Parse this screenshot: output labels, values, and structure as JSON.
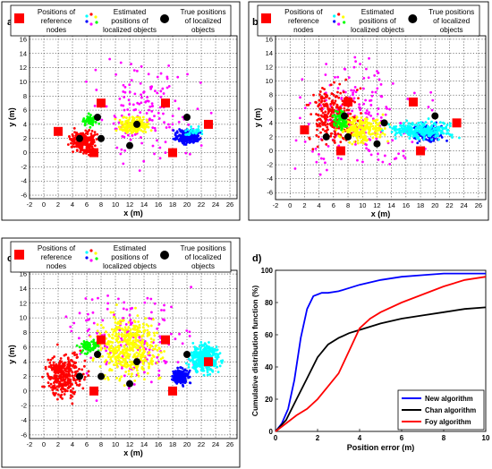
{
  "legend_text": {
    "ref": [
      "Positions of",
      "reference",
      "nodes"
    ],
    "est": [
      "Estimated",
      "positions of",
      "localized objects"
    ],
    "true": [
      "True positions",
      "of localized",
      "objects"
    ]
  },
  "chart_data": [
    {
      "type": "scatter",
      "panel_label": "a)",
      "xlabel": "x (m)",
      "ylabel": "y (m)",
      "xlim": [
        -2,
        27
      ],
      "ylim": [
        -6.5,
        16.5
      ],
      "xticks": [
        -2,
        0,
        2,
        4,
        6,
        8,
        10,
        12,
        14,
        16,
        18,
        20,
        22,
        24,
        26
      ],
      "yticks": [
        -6,
        -4,
        -2,
        0,
        2,
        4,
        6,
        8,
        10,
        12,
        14,
        16
      ],
      "grid": true,
      "legend": [
        "Positions of reference nodes",
        "Estimated positions of localized objects",
        "True positions of localized objects"
      ],
      "reference_nodes": [
        [
          2,
          3
        ],
        [
          7,
          0
        ],
        [
          8,
          7
        ],
        [
          17,
          7
        ],
        [
          18,
          0
        ],
        [
          23,
          4
        ]
      ],
      "true_positions": [
        [
          5,
          2
        ],
        [
          8,
          2
        ],
        [
          7.5,
          5
        ],
        [
          12,
          1
        ],
        [
          13,
          4
        ],
        [
          20,
          5
        ]
      ],
      "clusters": [
        {
          "color": "#ff00ff",
          "center": [
            14,
            6
          ],
          "spread": [
            7,
            6
          ],
          "n": 150
        },
        {
          "color": "#ff0000",
          "center": [
            5.5,
            1.5
          ],
          "spread": [
            1.6,
            1.5
          ],
          "n": 260
        },
        {
          "color": "#ffff00",
          "center": [
            12.5,
            3.8
          ],
          "spread": [
            2,
            1.1
          ],
          "n": 180
        },
        {
          "color": "#00ff00",
          "center": [
            6.5,
            4.5
          ],
          "spread": [
            1,
            0.8
          ],
          "n": 50
        },
        {
          "color": "#0000ff",
          "center": [
            20,
            2.3
          ],
          "spread": [
            1.5,
            0.9
          ],
          "n": 240
        },
        {
          "color": "#00ffff",
          "center": [
            21,
            3
          ],
          "spread": [
            1.2,
            0.6
          ],
          "n": 30
        }
      ]
    },
    {
      "type": "scatter",
      "panel_label": "b)",
      "xlabel": "x (m)",
      "ylabel": "y (m)",
      "xlim": [
        -2,
        27
      ],
      "ylim": [
        -7,
        16.5
      ],
      "xticks": [
        -2,
        0,
        2,
        4,
        6,
        8,
        10,
        12,
        14,
        16,
        18,
        20,
        22,
        24,
        26
      ],
      "yticks": [
        -6,
        -4,
        -2,
        0,
        2,
        4,
        6,
        8,
        10,
        12,
        14,
        16
      ],
      "grid": true,
      "legend": [
        "Positions of reference nodes",
        "Estimated positions of localized objects",
        "True positions of localized objects"
      ],
      "reference_nodes": [
        [
          2,
          3
        ],
        [
          7,
          0
        ],
        [
          8,
          7
        ],
        [
          17,
          7
        ],
        [
          18,
          0
        ],
        [
          23,
          4
        ]
      ],
      "true_positions": [
        [
          5,
          2
        ],
        [
          8,
          2
        ],
        [
          7.5,
          5
        ],
        [
          12,
          1
        ],
        [
          13,
          4
        ],
        [
          20,
          5
        ]
      ],
      "clusters": [
        {
          "color": "#ff00ff",
          "center": [
            10,
            5
          ],
          "spread": [
            8,
            7
          ],
          "n": 200
        },
        {
          "color": "#ff0000",
          "center": [
            6,
            5
          ],
          "spread": [
            3,
            4
          ],
          "n": 280
        },
        {
          "color": "#ffff00",
          "center": [
            10,
            3
          ],
          "spread": [
            3,
            1.8
          ],
          "n": 220
        },
        {
          "color": "#00ff00",
          "center": [
            7,
            4.5
          ],
          "spread": [
            1,
            1.5
          ],
          "n": 80
        },
        {
          "color": "#0000ff",
          "center": [
            19,
            2.5
          ],
          "spread": [
            2,
            1.2
          ],
          "n": 150
        },
        {
          "color": "#00ffff",
          "center": [
            18,
            3
          ],
          "spread": [
            4,
            1.2
          ],
          "n": 260
        }
      ]
    },
    {
      "type": "scatter",
      "panel_label": "c)",
      "xlabel": "x (m)",
      "ylabel": "y (m)",
      "xlim": [
        -2,
        27
      ],
      "ylim": [
        -6.5,
        16.5
      ],
      "xticks": [
        -2,
        0,
        2,
        4,
        6,
        8,
        10,
        12,
        14,
        16,
        18,
        20,
        22,
        24,
        26
      ],
      "yticks": [
        -6,
        -4,
        -2,
        0,
        2,
        4,
        6,
        8,
        10,
        12,
        14,
        16
      ],
      "grid": true,
      "legend": [
        "Positions of reference nodes",
        "Estimated positions of localized objects",
        "True positions of localized objects"
      ],
      "reference_nodes": [
        [
          2,
          3
        ],
        [
          7,
          0
        ],
        [
          8,
          7
        ],
        [
          17,
          7
        ],
        [
          18,
          0
        ],
        [
          23,
          4
        ]
      ],
      "true_positions": [
        [
          5,
          2
        ],
        [
          8,
          2
        ],
        [
          7.5,
          5
        ],
        [
          12,
          1
        ],
        [
          13,
          4
        ],
        [
          20,
          5
        ]
      ],
      "clusters": [
        {
          "color": "#ff00ff",
          "center": [
            12,
            7
          ],
          "spread": [
            8,
            6
          ],
          "n": 160
        },
        {
          "color": "#ff0000",
          "center": [
            3,
            2
          ],
          "spread": [
            2.5,
            3
          ],
          "n": 300
        },
        {
          "color": "#ffff00",
          "center": [
            12,
            6
          ],
          "spread": [
            4,
            4
          ],
          "n": 450
        },
        {
          "color": "#00ff00",
          "center": [
            6.5,
            6
          ],
          "spread": [
            1.5,
            0.8
          ],
          "n": 70
        },
        {
          "color": "#0000ff",
          "center": [
            19,
            2
          ],
          "spread": [
            1.2,
            1
          ],
          "n": 180
        },
        {
          "color": "#00ffff",
          "center": [
            22.5,
            4.5
          ],
          "spread": [
            2,
            1.8
          ],
          "n": 380
        }
      ]
    },
    {
      "type": "line",
      "panel_label": "d)",
      "xlabel": "Position error (m)",
      "ylabel": "Cumulative distribution function (%)",
      "xlim": [
        0,
        10
      ],
      "ylim": [
        0,
        100
      ],
      "xticks": [
        0,
        2,
        4,
        6,
        8,
        10
      ],
      "yticks": [
        0,
        20,
        40,
        60,
        80,
        100
      ],
      "grid": false,
      "legend_position": "bottom-right",
      "series": [
        {
          "name": "New algorithm",
          "color": "#0000ff",
          "x": [
            0,
            0.3,
            0.6,
            0.9,
            1.2,
            1.5,
            1.8,
            2.0,
            2.2,
            2.5,
            3.0,
            3.5,
            4.0,
            5.0,
            6.0,
            7.0,
            8.0,
            10.0
          ],
          "y": [
            0,
            5,
            14,
            32,
            58,
            76,
            84,
            85,
            86,
            86,
            87,
            89,
            91,
            94,
            96,
            97,
            98,
            98
          ]
        },
        {
          "name": "Chan algorithm",
          "color": "#000000",
          "x": [
            0,
            0.5,
            1.0,
            1.5,
            2.0,
            2.5,
            3.0,
            3.5,
            4.0,
            5.0,
            6.0,
            7.0,
            8.0,
            9.0,
            10.0
          ],
          "y": [
            0,
            7,
            20,
            33,
            46,
            54,
            58,
            61,
            63,
            67,
            70,
            72,
            74,
            76,
            77
          ]
        },
        {
          "name": "Foy algorithm",
          "color": "#ff0000",
          "x": [
            0,
            0.5,
            1.0,
            1.5,
            2.0,
            2.5,
            3.0,
            3.5,
            4.0,
            4.5,
            5.0,
            6.0,
            7.0,
            8.0,
            9.0,
            10.0
          ],
          "y": [
            0,
            5,
            10,
            14,
            20,
            28,
            36,
            50,
            64,
            70,
            74,
            80,
            85,
            90,
            94,
            96
          ]
        }
      ]
    }
  ]
}
